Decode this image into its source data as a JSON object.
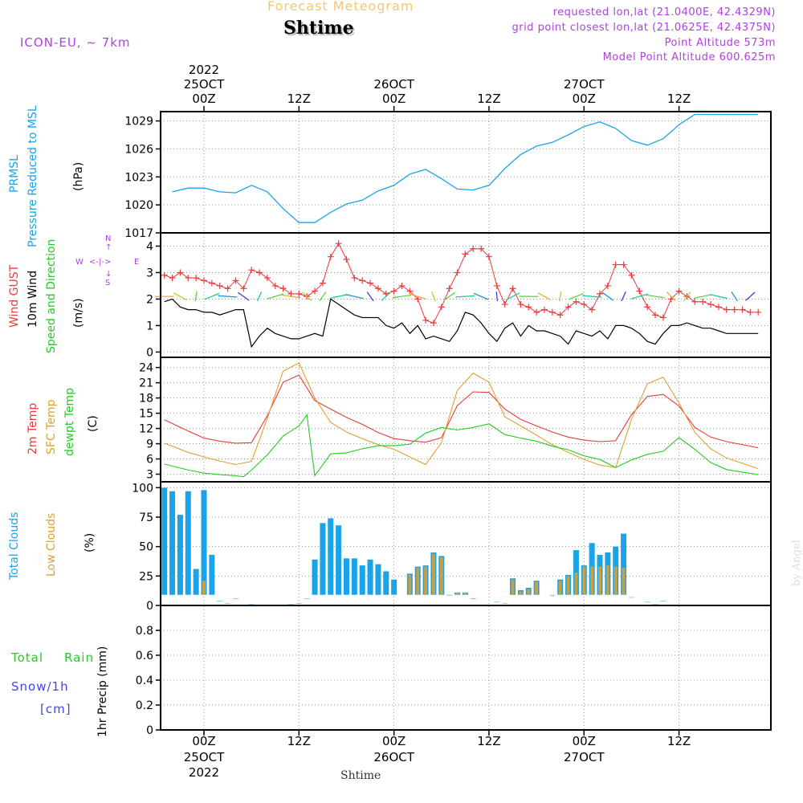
{
  "header": {
    "title": "Forecast Meteogram",
    "location": "Shtime",
    "model": "ICON-EU, ~ 7km",
    "requested": "requested lon,lat (21.0400E, 42.4329N)",
    "gridpoint": "grid point closest lon,lat (21.0625E, 42.4375N)",
    "altitude": "Point Altitude 573m",
    "model_altitude": "Model Point Altitude 600.625m",
    "footer_location": "Shtime",
    "watermark": "by Angel"
  },
  "time_axis": {
    "top_labels": [
      "00Z",
      "12Z",
      "00Z",
      "12Z",
      "00Z",
      "12Z"
    ],
    "top_dates": [
      "25OCT",
      "26OCT",
      "27OCT"
    ],
    "top_year": "2022",
    "bottom_labels": [
      "00Z",
      "12Z",
      "00Z",
      "12Z",
      "00Z",
      "12Z"
    ],
    "bottom_dates": [
      "25OCT",
      "26OCT",
      "27OCT"
    ],
    "bottom_year": "2022"
  },
  "panels": {
    "pressure": {
      "label1": "PRMSL",
      "label2": "Pressure Reduced to MSL",
      "unit": "(hPa)"
    },
    "wind": {
      "label1": "Wind GUST",
      "label2": "10m Wind",
      "label3": "Speed and Direction",
      "unit": "(m/s)",
      "compass_n": "N",
      "compass_s": "S",
      "compass_w": "W",
      "compass_e": "E"
    },
    "temp": {
      "label1": "2m Temp",
      "label2": "SFC Temp",
      "label3": "dewpt Temp",
      "unit": "(C)"
    },
    "clouds": {
      "label1": "Total Clouds",
      "label2": "Low Clouds",
      "unit": "(%)"
    },
    "precip": {
      "label1": "Total",
      "label2": "Rain",
      "label3": "Snow/1h",
      "label4": "[cm]",
      "unit": "1hr Precip (mm)"
    }
  },
  "colors": {
    "pressure": "#1aa3e8",
    "gust": "#e83c3c",
    "wind": "#000000",
    "temp2m": "#e83c3c",
    "sfc": "#e0a030",
    "dewpt": "#22cc22",
    "total_clouds": "#1aa3e8",
    "low_clouds": "#c8a040",
    "title": "#f0c878",
    "purple": "#b040e0",
    "total_rain": "#22cc22",
    "snow": "#4444ee"
  },
  "chart_data": [
    {
      "type": "line",
      "title": "PRMSL",
      "ylabel": "(hPa)",
      "x_unit": "hours from 25OCT 00Z",
      "yticks": [
        1017,
        1020,
        1023,
        1026,
        1029
      ],
      "ylim": [
        1017,
        1030
      ],
      "series": [
        {
          "name": "PRMSL",
          "x": [
            -4,
            -2,
            0,
            2,
            4,
            6,
            8,
            10,
            12,
            14,
            16,
            18,
            20,
            22,
            24,
            26,
            28,
            30,
            32,
            34,
            36,
            38,
            40,
            42,
            44,
            46,
            48,
            50,
            52,
            54,
            56,
            58,
            60,
            62,
            64,
            66,
            68,
            70
          ],
          "y": [
            1021.4,
            1021.8,
            1021.8,
            1021.4,
            1021.3,
            1022.1,
            1021.4,
            1019.6,
            1018.1,
            1018.1,
            1019.2,
            1020.1,
            1020.5,
            1021.5,
            1022.1,
            1023.3,
            1023.8,
            1022.8,
            1021.7,
            1021.6,
            1022.1,
            1023.9,
            1025.4,
            1026.3,
            1026.7,
            1027.5,
            1028.4,
            1028.9,
            1028.2,
            1026.9,
            1026.4,
            1027.1,
            1028.6,
            1029.7,
            1029.7,
            1029.7,
            1029.7,
            1029.7
          ]
        }
      ]
    },
    {
      "type": "line",
      "title": "Wind GUST / 10m Wind Speed and Direction",
      "ylabel": "(m/s)",
      "x_unit": "hours from 25OCT 00Z",
      "yticks": [
        0,
        1,
        2,
        3,
        4
      ],
      "ylim": [
        -0.2,
        4.5
      ],
      "series": [
        {
          "name": "Wind GUST",
          "x": [
            -5,
            -4,
            -3,
            -2,
            -1,
            0,
            1,
            2,
            3,
            4,
            5,
            6,
            7,
            8,
            9,
            10,
            11,
            12,
            13,
            14,
            15,
            16,
            17,
            18,
            19,
            20,
            21,
            22,
            23,
            24,
            25,
            26,
            27,
            28,
            29,
            30,
            31,
            32,
            33,
            34,
            35,
            36,
            37,
            38,
            39,
            40,
            41,
            42,
            43,
            44,
            45,
            46,
            47,
            48,
            49,
            50,
            51,
            52,
            53,
            54,
            55,
            56,
            57,
            58,
            59,
            60,
            61,
            62,
            63,
            64,
            65,
            66,
            67,
            68,
            69,
            70
          ],
          "y": [
            2.9,
            2.8,
            3.0,
            2.8,
            2.8,
            2.7,
            2.6,
            2.5,
            2.4,
            2.7,
            2.4,
            3.1,
            3.0,
            2.8,
            2.5,
            2.4,
            2.2,
            2.2,
            2.1,
            2.3,
            2.6,
            3.6,
            4.1,
            3.5,
            2.8,
            2.7,
            2.6,
            2.4,
            2.2,
            2.3,
            2.5,
            2.3,
            2.0,
            1.2,
            1.1,
            1.7,
            2.4,
            3.0,
            3.7,
            3.9,
            3.9,
            3.6,
            2.5,
            1.8,
            2.4,
            1.8,
            1.7,
            1.5,
            1.6,
            1.5,
            1.4,
            1.7,
            1.9,
            1.8,
            1.6,
            2.2,
            2.5,
            3.3,
            3.3,
            2.9,
            2.3,
            1.7,
            1.4,
            1.3,
            2.0,
            2.3,
            2.1,
            1.9,
            1.9,
            1.8,
            1.7,
            1.6,
            1.6,
            1.6,
            1.5,
            1.5
          ]
        },
        {
          "name": "10m Wind",
          "x": [
            -5,
            -4,
            -3,
            -2,
            -1,
            0,
            1,
            2,
            3,
            4,
            5,
            6,
            7,
            8,
            9,
            10,
            11,
            12,
            13,
            14,
            15,
            16,
            17,
            18,
            19,
            20,
            21,
            22,
            23,
            24,
            25,
            26,
            27,
            28,
            29,
            30,
            31,
            32,
            33,
            34,
            35,
            36,
            37,
            38,
            39,
            40,
            41,
            42,
            43,
            44,
            45,
            46,
            47,
            48,
            49,
            50,
            51,
            52,
            53,
            54,
            55,
            56,
            57,
            58,
            59,
            60,
            61,
            62,
            63,
            64,
            65,
            66,
            67,
            68,
            69,
            70
          ],
          "y": [
            1.9,
            2.0,
            1.7,
            1.6,
            1.6,
            1.5,
            1.5,
            1.4,
            1.5,
            1.6,
            1.6,
            0.2,
            0.6,
            0.9,
            0.7,
            0.6,
            0.5,
            0.5,
            0.6,
            0.7,
            0.6,
            2.0,
            1.8,
            1.6,
            1.4,
            1.3,
            1.3,
            1.3,
            1.0,
            0.9,
            1.1,
            0.7,
            1.0,
            0.5,
            0.6,
            0.5,
            0.4,
            0.8,
            1.5,
            1.4,
            1.1,
            0.7,
            0.4,
            0.9,
            1.1,
            0.6,
            1.0,
            0.8,
            0.8,
            0.7,
            0.6,
            0.3,
            0.8,
            0.7,
            0.6,
            0.8,
            0.5,
            1.0,
            1.0,
            0.9,
            0.7,
            0.4,
            0.3,
            0.7,
            1.0,
            1.0,
            1.1,
            1.0,
            0.9,
            0.9,
            0.8,
            0.7,
            0.7,
            0.7,
            0.7,
            0.7
          ]
        }
      ]
    },
    {
      "type": "line",
      "title": "2m Temp / SFC Temp / dewpt Temp",
      "ylabel": "(C)",
      "x_unit": "hours from 25OCT 00Z",
      "yticks": [
        3,
        6,
        9,
        12,
        15,
        18,
        21,
        24
      ],
      "ylim": [
        1.5,
        26
      ],
      "series": [
        {
          "name": "2m Temp",
          "x": [
            -5,
            -2,
            0,
            2,
            4,
            6,
            8,
            10,
            12,
            14,
            16,
            18,
            20,
            22,
            24,
            26,
            28,
            30,
            32,
            34,
            36,
            38,
            40,
            42,
            44,
            46,
            48,
            50,
            52,
            54,
            56,
            58,
            60,
            62,
            64,
            66,
            70
          ],
          "y": [
            13.7,
            11.5,
            10.1,
            9.5,
            9.1,
            9.2,
            14.5,
            21.1,
            22.5,
            17.5,
            15.8,
            14.2,
            12.8,
            11.2,
            10.0,
            9.6,
            9.3,
            10.2,
            16.5,
            19.2,
            19.1,
            15.8,
            13.8,
            12.5,
            11.3,
            10.3,
            9.7,
            9.4,
            9.6,
            14.7,
            18.3,
            18.7,
            16.4,
            12.2,
            10.3,
            9.4,
            8.2
          ]
        },
        {
          "name": "SFC Temp",
          "x": [
            -5,
            -2,
            0,
            2,
            4,
            6,
            8,
            10,
            12,
            14,
            16,
            18,
            20,
            22,
            24,
            26,
            28,
            30,
            32,
            34,
            36,
            38,
            40,
            42,
            44,
            46,
            48,
            50,
            52,
            54,
            56,
            58,
            60,
            62,
            64,
            66,
            70
          ],
          "y": [
            9.1,
            7.3,
            6.4,
            5.6,
            4.9,
            5.5,
            14.0,
            23.3,
            24.9,
            18.0,
            13.2,
            11.3,
            10.0,
            8.8,
            7.9,
            6.4,
            4.9,
            9.2,
            19.5,
            22.9,
            21.1,
            14.3,
            12.5,
            10.7,
            8.8,
            7.3,
            5.9,
            4.8,
            4.3,
            13.8,
            20.8,
            22.1,
            17.0,
            11.2,
            8.0,
            6.2,
            4.1
          ]
        },
        {
          "name": "dewpt Temp",
          "x": [
            -5,
            -2,
            0,
            2,
            4,
            5,
            6,
            8,
            10,
            12,
            13,
            14,
            16,
            18,
            20,
            22,
            24,
            26,
            28,
            30,
            32,
            34,
            36,
            38,
            40,
            42,
            44,
            46,
            48,
            50,
            52,
            54,
            56,
            58,
            60,
            62,
            64,
            66,
            70
          ],
          "y": [
            5.0,
            3.8,
            3.2,
            2.9,
            2.7,
            2.5,
            3.8,
            6.8,
            10.5,
            12.5,
            14.7,
            2.7,
            7.0,
            7.2,
            8.0,
            8.6,
            8.6,
            8.9,
            11.1,
            12.2,
            11.7,
            12.2,
            12.9,
            10.8,
            10.1,
            9.5,
            8.5,
            7.8,
            6.6,
            5.9,
            4.3,
            5.8,
            6.9,
            7.5,
            10.2,
            7.9,
            5.3,
            3.9,
            2.9
          ]
        }
      ]
    },
    {
      "type": "bar",
      "title": "Total Clouds / Low Clouds",
      "ylabel": "(%)",
      "x_unit": "hours from 25OCT 00Z",
      "yticks": [
        0,
        25,
        50,
        75,
        100
      ],
      "ylim": [
        0,
        105
      ],
      "categories": [
        -5,
        -4,
        -3,
        -2,
        -1,
        0,
        1,
        2,
        3,
        4,
        5,
        6,
        7,
        8,
        9,
        10,
        11,
        12,
        13,
        14,
        15,
        16,
        17,
        18,
        19,
        20,
        21,
        22,
        23,
        24,
        25,
        26,
        27,
        28,
        29,
        30,
        31,
        32,
        33,
        34,
        35,
        36,
        37,
        38,
        39,
        40,
        41,
        42,
        43,
        44,
        45,
        46,
        47,
        48,
        49,
        50,
        51,
        52,
        53,
        54,
        55,
        56,
        57,
        58,
        59,
        60,
        61,
        62,
        63,
        64,
        65,
        66,
        67,
        68,
        69,
        70
      ],
      "series": [
        {
          "name": "Total Clouds",
          "values": [
            100,
            97,
            77,
            97,
            31,
            98,
            43,
            4,
            2,
            6,
            0,
            1,
            0,
            0,
            0,
            0,
            1,
            2,
            6,
            39,
            70,
            74,
            68,
            40,
            40,
            34,
            39,
            35,
            29,
            22,
            0,
            27,
            33,
            34,
            45,
            42,
            9,
            11,
            11,
            6,
            0,
            0,
            3,
            2,
            23,
            13,
            15,
            21,
            0,
            9,
            22,
            26,
            47,
            34,
            53,
            43,
            45,
            50,
            61,
            7,
            0,
            3,
            1,
            4,
            0,
            0,
            0,
            0,
            0,
            0,
            0,
            0,
            0,
            0,
            0,
            0
          ]
        },
        {
          "name": "Low Clouds",
          "values": [
            0,
            0,
            0,
            0,
            0,
            21,
            0,
            0,
            0,
            0,
            0,
            0,
            0,
            0,
            0,
            0,
            0,
            0,
            0,
            0,
            0,
            0,
            0,
            0,
            0,
            0,
            0,
            0,
            0,
            0,
            0,
            26,
            32,
            33,
            44,
            41,
            9,
            11,
            11,
            6,
            0,
            0,
            0,
            2,
            22,
            12,
            14,
            20,
            0,
            8,
            21,
            25,
            28,
            33,
            33,
            33,
            34,
            33,
            32,
            0,
            0,
            0,
            0,
            0,
            0,
            0,
            0,
            0,
            0,
            0,
            0,
            0,
            0,
            0,
            0,
            0
          ]
        }
      ]
    },
    {
      "type": "bar",
      "title": "1hr Precip",
      "ylabel": "1hr Precip (mm)",
      "x_unit": "hours from 25OCT 00Z",
      "yticks": [
        0,
        0.2,
        0.4,
        0.6,
        0.8
      ],
      "ylim": [
        0,
        1.0
      ],
      "categories": [],
      "series": [
        {
          "name": "Total Rain",
          "values": []
        },
        {
          "name": "Snow/1h",
          "values": []
        }
      ]
    }
  ]
}
